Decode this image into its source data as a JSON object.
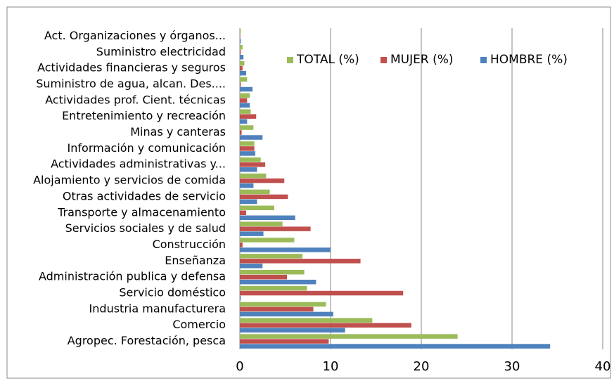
{
  "chart_data": {
    "type": "bar",
    "orientation": "horizontal",
    "categories": [
      "Agropec. Forestación, pesca",
      "Comercio",
      "Industria manufacturera",
      "Servicio doméstico",
      "Administración publica y defensa",
      "Enseñanza",
      "Construcción",
      "Servicios sociales y de salud",
      "Transporte y almacenamiento",
      "Otras actividades de servicio",
      "Alojamiento y servicios de comida",
      "Actividades administrativas y...",
      "Información y comunicación",
      "Minas y canteras",
      "Entretenimiento y recreación",
      "Actividades prof. Cient. técnicas",
      "Suministro de agua, alcan. Des....",
      "Actividades financieras y seguros",
      "Suministro electricidad",
      "Act. Organizaciones y órganos..."
    ],
    "series": [
      {
        "name": "TOTAL (%)",
        "color": "#9bbb59",
        "values": [
          24.0,
          14.6,
          9.5,
          7.4,
          7.1,
          6.9,
          6.0,
          4.7,
          3.8,
          3.3,
          2.9,
          2.3,
          1.6,
          1.5,
          1.2,
          1.1,
          0.8,
          0.5,
          0.3,
          0.1
        ]
      },
      {
        "name": "MUJER (%)",
        "color": "#c0504d",
        "values": [
          9.8,
          18.9,
          8.1,
          18.0,
          5.2,
          13.3,
          0.3,
          7.8,
          0.7,
          5.3,
          4.9,
          2.8,
          1.6,
          0.2,
          1.8,
          0.8,
          0.1,
          0.3,
          0.1,
          0.05
        ]
      },
      {
        "name": "HOMBRE (%)",
        "color": "#4f81bd",
        "values": [
          34.2,
          11.6,
          10.3,
          0.1,
          8.4,
          2.5,
          10.0,
          2.6,
          6.1,
          1.9,
          1.5,
          1.9,
          1.7,
          2.5,
          0.8,
          1.1,
          1.4,
          0.7,
          0.4,
          0.1
        ]
      }
    ],
    "xlim": [
      0,
      40
    ],
    "xticks": [
      0,
      10,
      20,
      30,
      40
    ],
    "grid": true,
    "legend": "top-right"
  }
}
